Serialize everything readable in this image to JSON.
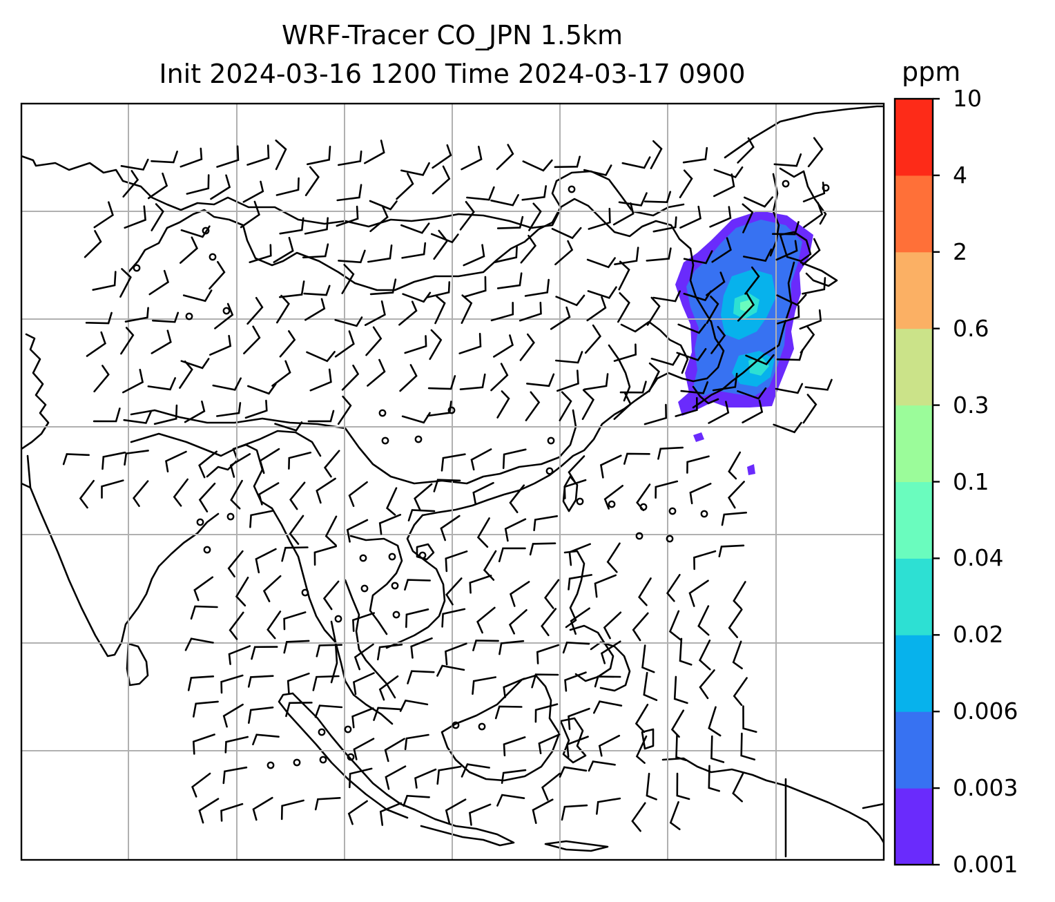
{
  "figure": {
    "title_line1": "WRF-Tracer CO_JPN 1.5km",
    "title_line2": "Init 2024-03-16 1200 Time 2024-03-17 0900",
    "colorbar_unit": "ppm"
  },
  "colorbar": {
    "levels": [
      "0.001",
      "0.003",
      "0.006",
      "0.02",
      "0.04",
      "0.1",
      "0.3",
      "0.6",
      "2",
      "4",
      "10"
    ],
    "colors": [
      "#6a2bfc",
      "#3772f2",
      "#07b2ec",
      "#2de0d3",
      "#6afcbe",
      "#9bfc9a",
      "#cbe389",
      "#fbb064",
      "#ff7038",
      "#fd2b18"
    ]
  },
  "map": {
    "projection_grid_lines": "on",
    "coastline_color": "#000000",
    "grid_color": "#b0b0b0",
    "wind_barbs": "on",
    "plume_region": "northeast (Japan / Korea)",
    "plume_colors_present": [
      "#6a2bfc",
      "#3772f2",
      "#07b2ec",
      "#2de0d3",
      "#6afcbe"
    ]
  }
}
